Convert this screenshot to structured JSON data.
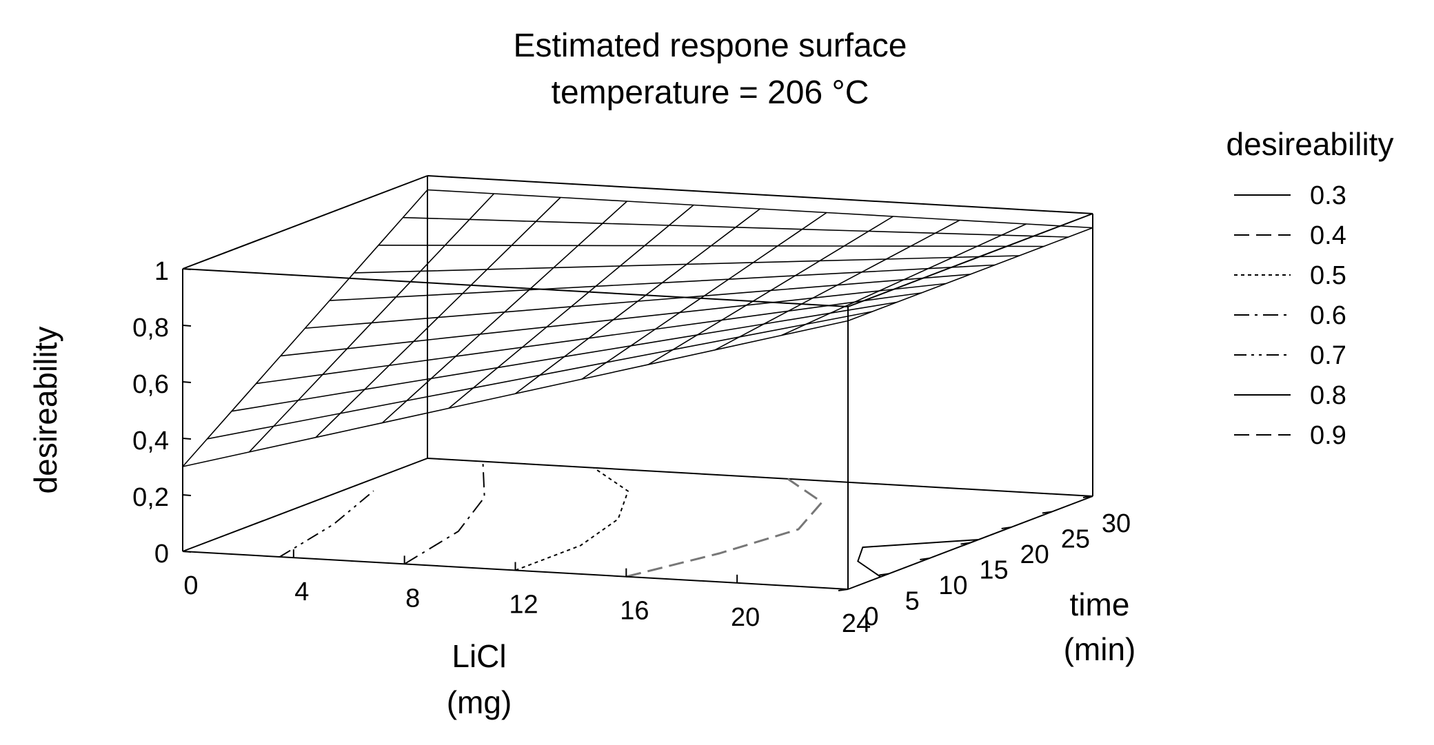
{
  "chart_data": {
    "type": "surface3d",
    "title": [
      "Estimated respone surface",
      "temperature = 206 °C"
    ],
    "xlabel": [
      "LiCl",
      "(mg)"
    ],
    "ylabel": [
      "time",
      "(min)"
    ],
    "zlabel": "desireability",
    "x_ticks": [
      "0",
      "4",
      "8",
      "12",
      "16",
      "20",
      "24"
    ],
    "y_ticks": [
      "0",
      "5",
      "10",
      "15",
      "20",
      "25",
      "30"
    ],
    "z_ticks": [
      "0",
      "0,2",
      "0,4",
      "0,6",
      "0,8",
      "1"
    ],
    "xlim": [
      0,
      24
    ],
    "ylim": [
      0,
      30
    ],
    "zlim": [
      0,
      1
    ],
    "surface": {
      "corner_values": {
        "x0_y0": 0.3,
        "x24_y0": 0.95,
        "x0_y30": 0.95,
        "x24_y30": 0.95
      },
      "grid_divisions": 10
    },
    "contours": [
      {
        "level": 0.3,
        "style": "solid",
        "points": [
          [
            24,
            4
          ],
          [
            22,
            8
          ],
          [
            21,
            12
          ],
          [
            24,
            16
          ]
        ]
      },
      {
        "level": 0.4,
        "style": "dash",
        "points": [
          [
            16,
            0
          ],
          [
            17,
            8
          ],
          [
            17.5,
            16
          ],
          [
            16,
            24
          ],
          [
            13,
            30
          ]
        ]
      },
      {
        "level": 0.5,
        "style": "dot",
        "points": [
          [
            12,
            0
          ],
          [
            12,
            8
          ],
          [
            11,
            16
          ],
          [
            9,
            24
          ],
          [
            6,
            30
          ]
        ]
      },
      {
        "level": 0.6,
        "style": "dashdot",
        "points": [
          [
            8,
            0
          ],
          [
            7,
            10
          ],
          [
            5,
            20
          ],
          [
            2,
            30
          ]
        ]
      },
      {
        "level": 0.7,
        "style": "dashdotdot",
        "points": [
          [
            3.5,
            0
          ],
          [
            2.5,
            10
          ],
          [
            1,
            20
          ]
        ]
      }
    ],
    "legend": {
      "title": "desireability",
      "position": "right",
      "entries": [
        {
          "label": "0.3",
          "style": "solid"
        },
        {
          "label": "0.4",
          "style": "dash"
        },
        {
          "label": "0.5",
          "style": "dot"
        },
        {
          "label": "0.6",
          "style": "dashdot"
        },
        {
          "label": "0.7",
          "style": "dashdotdot"
        },
        {
          "label": "0.8",
          "style": "solid"
        },
        {
          "label": "0.9",
          "style": "dash"
        }
      ]
    }
  }
}
